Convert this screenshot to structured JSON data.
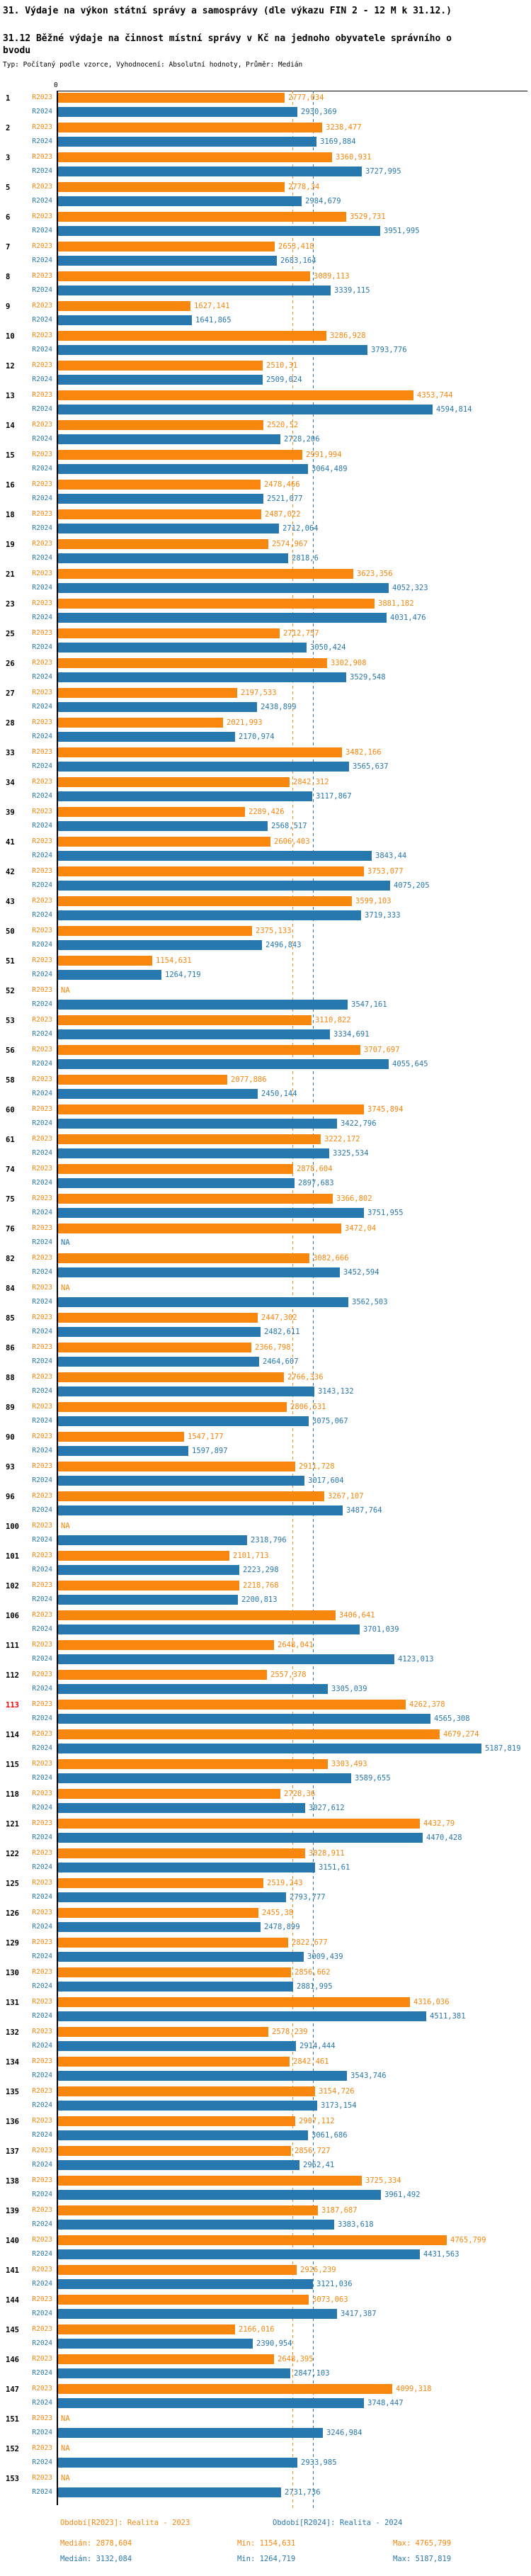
{
  "header": {
    "title1": "31. Výdaje na výkon státní správy a samosprávy (dle výkazu FIN 2 - 12 M k 31.12.)",
    "title2": "31.12 Běžné výdaje na činnost místní správy v Kč na jednoho obyvatele správního obvodu",
    "meta": "Typ: Počítaný podle vzorce, Vyhodnocení: Absolutní hodnoty, Průměr: Medián"
  },
  "colors": {
    "r2023": "#f9860d",
    "r2024": "#2878b0",
    "highlight_row": "#ff0000"
  },
  "chart_data": {
    "type": "bar",
    "orientation": "horizontal",
    "series_labels": {
      "r2023": "R2023",
      "r2024": "R2024"
    },
    "x_axis": {
      "min": 0,
      "tick_labels": [
        "0"
      ],
      "grid": false
    },
    "median_lines": {
      "r2023": 2878.604,
      "r2024": 3132.084
    },
    "na_text": "NA",
    "stats": {
      "r2023": {
        "median": 2878.604,
        "min": 1154.631,
        "max": 4765.799
      },
      "r2024": {
        "median": 3132.084,
        "min": 1264.719,
        "max": 5187.819
      }
    },
    "rows": [
      {
        "id": "1",
        "r2023": "2777,034",
        "r2024": "2930,369"
      },
      {
        "id": "2",
        "r2023": "3238,477",
        "r2024": "3169,884"
      },
      {
        "id": "3",
        "r2023": "3360,931",
        "r2024": "3727,995"
      },
      {
        "id": "5",
        "r2023": "2778,34",
        "r2024": "2984,679"
      },
      {
        "id": "6",
        "r2023": "3529,731",
        "r2024": "3951,995"
      },
      {
        "id": "7",
        "r2023": "2653,418",
        "r2024": "2683,164"
      },
      {
        "id": "8",
        "r2023": "3089,113",
        "r2024": "3339,115"
      },
      {
        "id": "9",
        "r2023": "1627,141",
        "r2024": "1641,865"
      },
      {
        "id": "10",
        "r2023": "3286,928",
        "r2024": "3793,776"
      },
      {
        "id": "12",
        "r2023": "2510,31",
        "r2024": "2509,024"
      },
      {
        "id": "13",
        "r2023": "4353,744",
        "r2024": "4594,814"
      },
      {
        "id": "14",
        "r2023": "2520,52",
        "r2024": "2728,206"
      },
      {
        "id": "15",
        "r2023": "2991,994",
        "r2024": "3064,489"
      },
      {
        "id": "16",
        "r2023": "2478,466",
        "r2024": "2521,077"
      },
      {
        "id": "18",
        "r2023": "2487,022",
        "r2024": "2712,064"
      },
      {
        "id": "19",
        "r2023": "2574,967",
        "r2024": "2818,6"
      },
      {
        "id": "21",
        "r2023": "3623,356",
        "r2024": "4052,323"
      },
      {
        "id": "23",
        "r2023": "3881,182",
        "r2024": "4031,476"
      },
      {
        "id": "25",
        "r2023": "2712,757",
        "r2024": "3050,424"
      },
      {
        "id": "26",
        "r2023": "3302,908",
        "r2024": "3529,548"
      },
      {
        "id": "27",
        "r2023": "2197,533",
        "r2024": "2438,899"
      },
      {
        "id": "28",
        "r2023": "2021,993",
        "r2024": "2170,974"
      },
      {
        "id": "33",
        "r2023": "3482,166",
        "r2024": "3565,637"
      },
      {
        "id": "34",
        "r2023": "2842,312",
        "r2024": "3117,867"
      },
      {
        "id": "39",
        "r2023": "2289,426",
        "r2024": "2568,517"
      },
      {
        "id": "41",
        "r2023": "2606,403",
        "r2024": "3843,44"
      },
      {
        "id": "42",
        "r2023": "3753,077",
        "r2024": "4075,205"
      },
      {
        "id": "43",
        "r2023": "3599,103",
        "r2024": "3719,333"
      },
      {
        "id": "50",
        "r2023": "2375,133",
        "r2024": "2496,843"
      },
      {
        "id": "51",
        "r2023": "1154,631",
        "r2024": "1264,719"
      },
      {
        "id": "52",
        "r2023": "NA",
        "r2024": "3547,161"
      },
      {
        "id": "53",
        "r2023": "3110,822",
        "r2024": "3334,691"
      },
      {
        "id": "56",
        "r2023": "3707,697",
        "r2024": "4055,645"
      },
      {
        "id": "58",
        "r2023": "2077,886",
        "r2024": "2450,144"
      },
      {
        "id": "60",
        "r2023": "3745,894",
        "r2024": "3422,796"
      },
      {
        "id": "61",
        "r2023": "3222,172",
        "r2024": "3325,534"
      },
      {
        "id": "74",
        "r2023": "2878,604",
        "r2024": "2897,683"
      },
      {
        "id": "75",
        "r2023": "3366,802",
        "r2024": "3751,955"
      },
      {
        "id": "76",
        "r2023": "3472,04",
        "r2024": "NA"
      },
      {
        "id": "82",
        "r2023": "3082,666",
        "r2024": "3452,594"
      },
      {
        "id": "84",
        "r2023": "NA",
        "r2024": "3562,503"
      },
      {
        "id": "85",
        "r2023": "2447,302",
        "r2024": "2482,611"
      },
      {
        "id": "86",
        "r2023": "2366,798",
        "r2024": "2464,607"
      },
      {
        "id": "88",
        "r2023": "2766,336",
        "r2024": "3143,132"
      },
      {
        "id": "89",
        "r2023": "2806,531",
        "r2024": "3075,067"
      },
      {
        "id": "90",
        "r2023": "1547,177",
        "r2024": "1597,897"
      },
      {
        "id": "93",
        "r2023": "2911,728",
        "r2024": "3017,604"
      },
      {
        "id": "96",
        "r2023": "3267,107",
        "r2024": "3487,764"
      },
      {
        "id": "100",
        "r2023": "NA",
        "r2024": "2318,796"
      },
      {
        "id": "101",
        "r2023": "2101,713",
        "r2024": "2223,298"
      },
      {
        "id": "102",
        "r2023": "2218,768",
        "r2024": "2200,813"
      },
      {
        "id": "106",
        "r2023": "3406,641",
        "r2024": "3701,039"
      },
      {
        "id": "111",
        "r2023": "2648,041",
        "r2024": "4123,013"
      },
      {
        "id": "112",
        "r2023": "2557,378",
        "r2024": "3305,039"
      },
      {
        "id": "113",
        "r2023": "4262,378",
        "r2024": "4565,308",
        "highlight": true
      },
      {
        "id": "114",
        "r2023": "4679,274",
        "r2024": "5187,819"
      },
      {
        "id": "115",
        "r2023": "3303,493",
        "r2024": "3589,655"
      },
      {
        "id": "118",
        "r2023": "2728,36",
        "r2024": "3027,612"
      },
      {
        "id": "121",
        "r2023": "4432,79",
        "r2024": "4470,428"
      },
      {
        "id": "122",
        "r2023": "3028,911",
        "r2024": "3151,61"
      },
      {
        "id": "125",
        "r2023": "2519,243",
        "r2024": "2793,777"
      },
      {
        "id": "126",
        "r2023": "2455,38",
        "r2024": "2478,899"
      },
      {
        "id": "129",
        "r2023": "2822,677",
        "r2024": "3009,439"
      },
      {
        "id": "130",
        "r2023": "2856,662",
        "r2024": "2881,995"
      },
      {
        "id": "131",
        "r2023": "4316,036",
        "r2024": "4511,381"
      },
      {
        "id": "132",
        "r2023": "2578,239",
        "r2024": "2914,444"
      },
      {
        "id": "134",
        "r2023": "2842,461",
        "r2024": "3543,746"
      },
      {
        "id": "135",
        "r2023": "3154,726",
        "r2024": "3173,154"
      },
      {
        "id": "136",
        "r2023": "2907,112",
        "r2024": "3061,686"
      },
      {
        "id": "137",
        "r2023": "2856,727",
        "r2024": "2962,41"
      },
      {
        "id": "138",
        "r2023": "3725,334",
        "r2024": "3961,492"
      },
      {
        "id": "139",
        "r2023": "3187,687",
        "r2024": "3383,618"
      },
      {
        "id": "140",
        "r2023": "4765,799",
        "r2024": "4431,563"
      },
      {
        "id": "141",
        "r2023": "2926,239",
        "r2024": "3121,036"
      },
      {
        "id": "144",
        "r2023": "3073,063",
        "r2024": "3417,387"
      },
      {
        "id": "145",
        "r2023": "2166,016",
        "r2024": "2390,954"
      },
      {
        "id": "146",
        "r2023": "2648,395",
        "r2024": "2847,103"
      },
      {
        "id": "147",
        "r2023": "4099,318",
        "r2024": "3748,447"
      },
      {
        "id": "151",
        "r2023": "NA",
        "r2024": "3246,984"
      },
      {
        "id": "152",
        "r2023": "NA",
        "r2024": "2933,985"
      },
      {
        "id": "153",
        "r2023": "NA",
        "r2024": "2731,736"
      }
    ]
  },
  "legend": {
    "period_r2023": "Období[R2023]: Realita - 2023",
    "period_r2024": "Období[R2024]: Realita - 2024",
    "r2023": {
      "median": "Medián: 2878,604",
      "min": "Min: 1154,631",
      "max": "Max: 4765,799"
    },
    "r2024": {
      "median": "Medián: 3132,084",
      "min": "Min: 1264,719",
      "max": "Max: 5187,819"
    }
  }
}
